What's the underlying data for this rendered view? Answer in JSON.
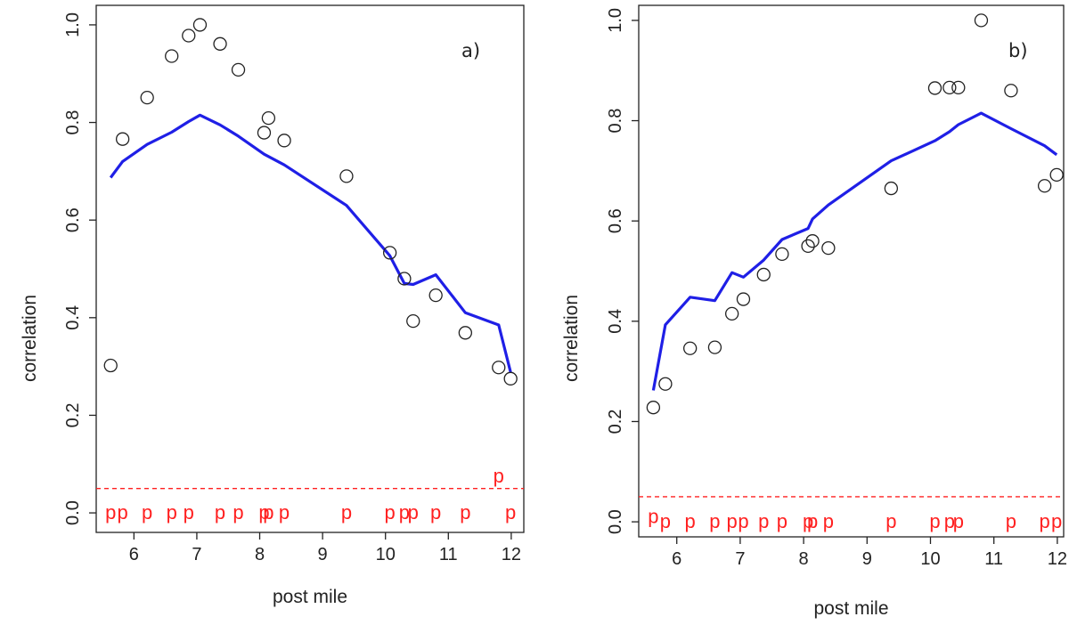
{
  "chart_data": [
    {
      "type": "scatter",
      "panel_label": "a)",
      "xlabel": "post mile",
      "ylabel": "correlation",
      "xlim": [
        5.4,
        12.2
      ],
      "ylim": [
        -0.04,
        1.04
      ],
      "xticks": [
        6,
        7,
        8,
        9,
        10,
        11,
        12
      ],
      "yticks": [
        0.0,
        0.2,
        0.4,
        0.6,
        0.8,
        1.0
      ],
      "points": {
        "x": [
          5.63,
          5.82,
          6.21,
          6.6,
          6.87,
          7.05,
          7.37,
          7.66,
          8.07,
          8.14,
          8.39,
          9.38,
          10.07,
          10.3,
          10.44,
          10.8,
          11.27,
          11.8,
          11.99
        ],
        "y": [
          0.302,
          0.766,
          0.851,
          0.936,
          0.978,
          1.0,
          0.961,
          0.908,
          0.779,
          0.809,
          0.763,
          0.69,
          0.533,
          0.48,
          0.393,
          0.446,
          0.369,
          0.298,
          0.275
        ]
      },
      "fitted_line": {
        "color": "#1f1fe6",
        "x": [
          5.63,
          5.82,
          6.21,
          6.6,
          6.87,
          7.05,
          7.37,
          7.66,
          8.07,
          8.39,
          9.38,
          10.07,
          10.3,
          10.44,
          10.8,
          11.27,
          11.8,
          11.99
        ],
        "y": [
          0.687,
          0.72,
          0.755,
          0.78,
          0.802,
          0.815,
          0.795,
          0.772,
          0.735,
          0.713,
          0.63,
          0.527,
          0.47,
          0.468,
          0.488,
          0.41,
          0.385,
          0.288
        ]
      },
      "threshold": {
        "y": 0.05,
        "color": "#ff2020"
      },
      "p_markers": {
        "label": "p",
        "x": [
          5.63,
          5.82,
          6.21,
          6.6,
          6.87,
          7.37,
          7.66,
          8.07,
          8.14,
          8.39,
          9.38,
          10.07,
          10.3,
          10.44,
          10.8,
          11.27,
          11.8,
          11.99
        ],
        "y": [
          0.0,
          0.0,
          0.0,
          0.0,
          0.0,
          0.0,
          0.0,
          0.0,
          0.0,
          0.0,
          0.0,
          0.0,
          0.0,
          0.0,
          0.0,
          0.0,
          0.075,
          0.0
        ]
      }
    },
    {
      "type": "scatter",
      "panel_label": "b)",
      "xlabel": "post mile",
      "ylabel": "correlation",
      "xlim": [
        5.4,
        12.1
      ],
      "ylim": [
        -0.03,
        1.03
      ],
      "xticks": [
        6,
        7,
        8,
        9,
        10,
        11,
        12
      ],
      "yticks": [
        0.0,
        0.2,
        0.4,
        0.6,
        0.8,
        1.0
      ],
      "points": {
        "x": [
          5.63,
          5.82,
          6.21,
          6.6,
          6.87,
          7.05,
          7.37,
          7.66,
          8.07,
          8.14,
          8.39,
          9.38,
          10.07,
          10.3,
          10.44,
          10.8,
          11.27,
          11.8,
          11.99
        ],
        "y": [
          0.228,
          0.275,
          0.346,
          0.348,
          0.415,
          0.444,
          0.493,
          0.534,
          0.55,
          0.56,
          0.546,
          0.665,
          0.865,
          0.866,
          0.866,
          1.0,
          0.86,
          0.67,
          0.692
        ]
      },
      "fitted_line": {
        "color": "#1f1fe6",
        "x": [
          5.63,
          5.82,
          6.21,
          6.6,
          6.87,
          7.05,
          7.37,
          7.66,
          8.07,
          8.14,
          8.39,
          9.38,
          10.07,
          10.3,
          10.44,
          10.8,
          11.27,
          11.8,
          11.99
        ],
        "y": [
          0.262,
          0.393,
          0.448,
          0.441,
          0.497,
          0.488,
          0.522,
          0.563,
          0.585,
          0.604,
          0.632,
          0.72,
          0.76,
          0.778,
          0.792,
          0.815,
          0.784,
          0.75,
          0.732
        ]
      },
      "threshold": {
        "y": 0.05,
        "color": "#ff2020"
      },
      "p_markers": {
        "label": "p",
        "x": [
          5.63,
          5.82,
          6.21,
          6.6,
          6.87,
          7.05,
          7.37,
          7.66,
          8.07,
          8.14,
          8.39,
          9.38,
          10.07,
          10.3,
          10.44,
          11.27,
          11.8,
          11.99
        ],
        "y": [
          0.01,
          0.0,
          0.0,
          0.0,
          0.0,
          0.0,
          0.0,
          0.0,
          0.0,
          0.0,
          0.0,
          0.0,
          0.0,
          0.0,
          0.0,
          0.0,
          0.0,
          0.0
        ]
      }
    }
  ]
}
